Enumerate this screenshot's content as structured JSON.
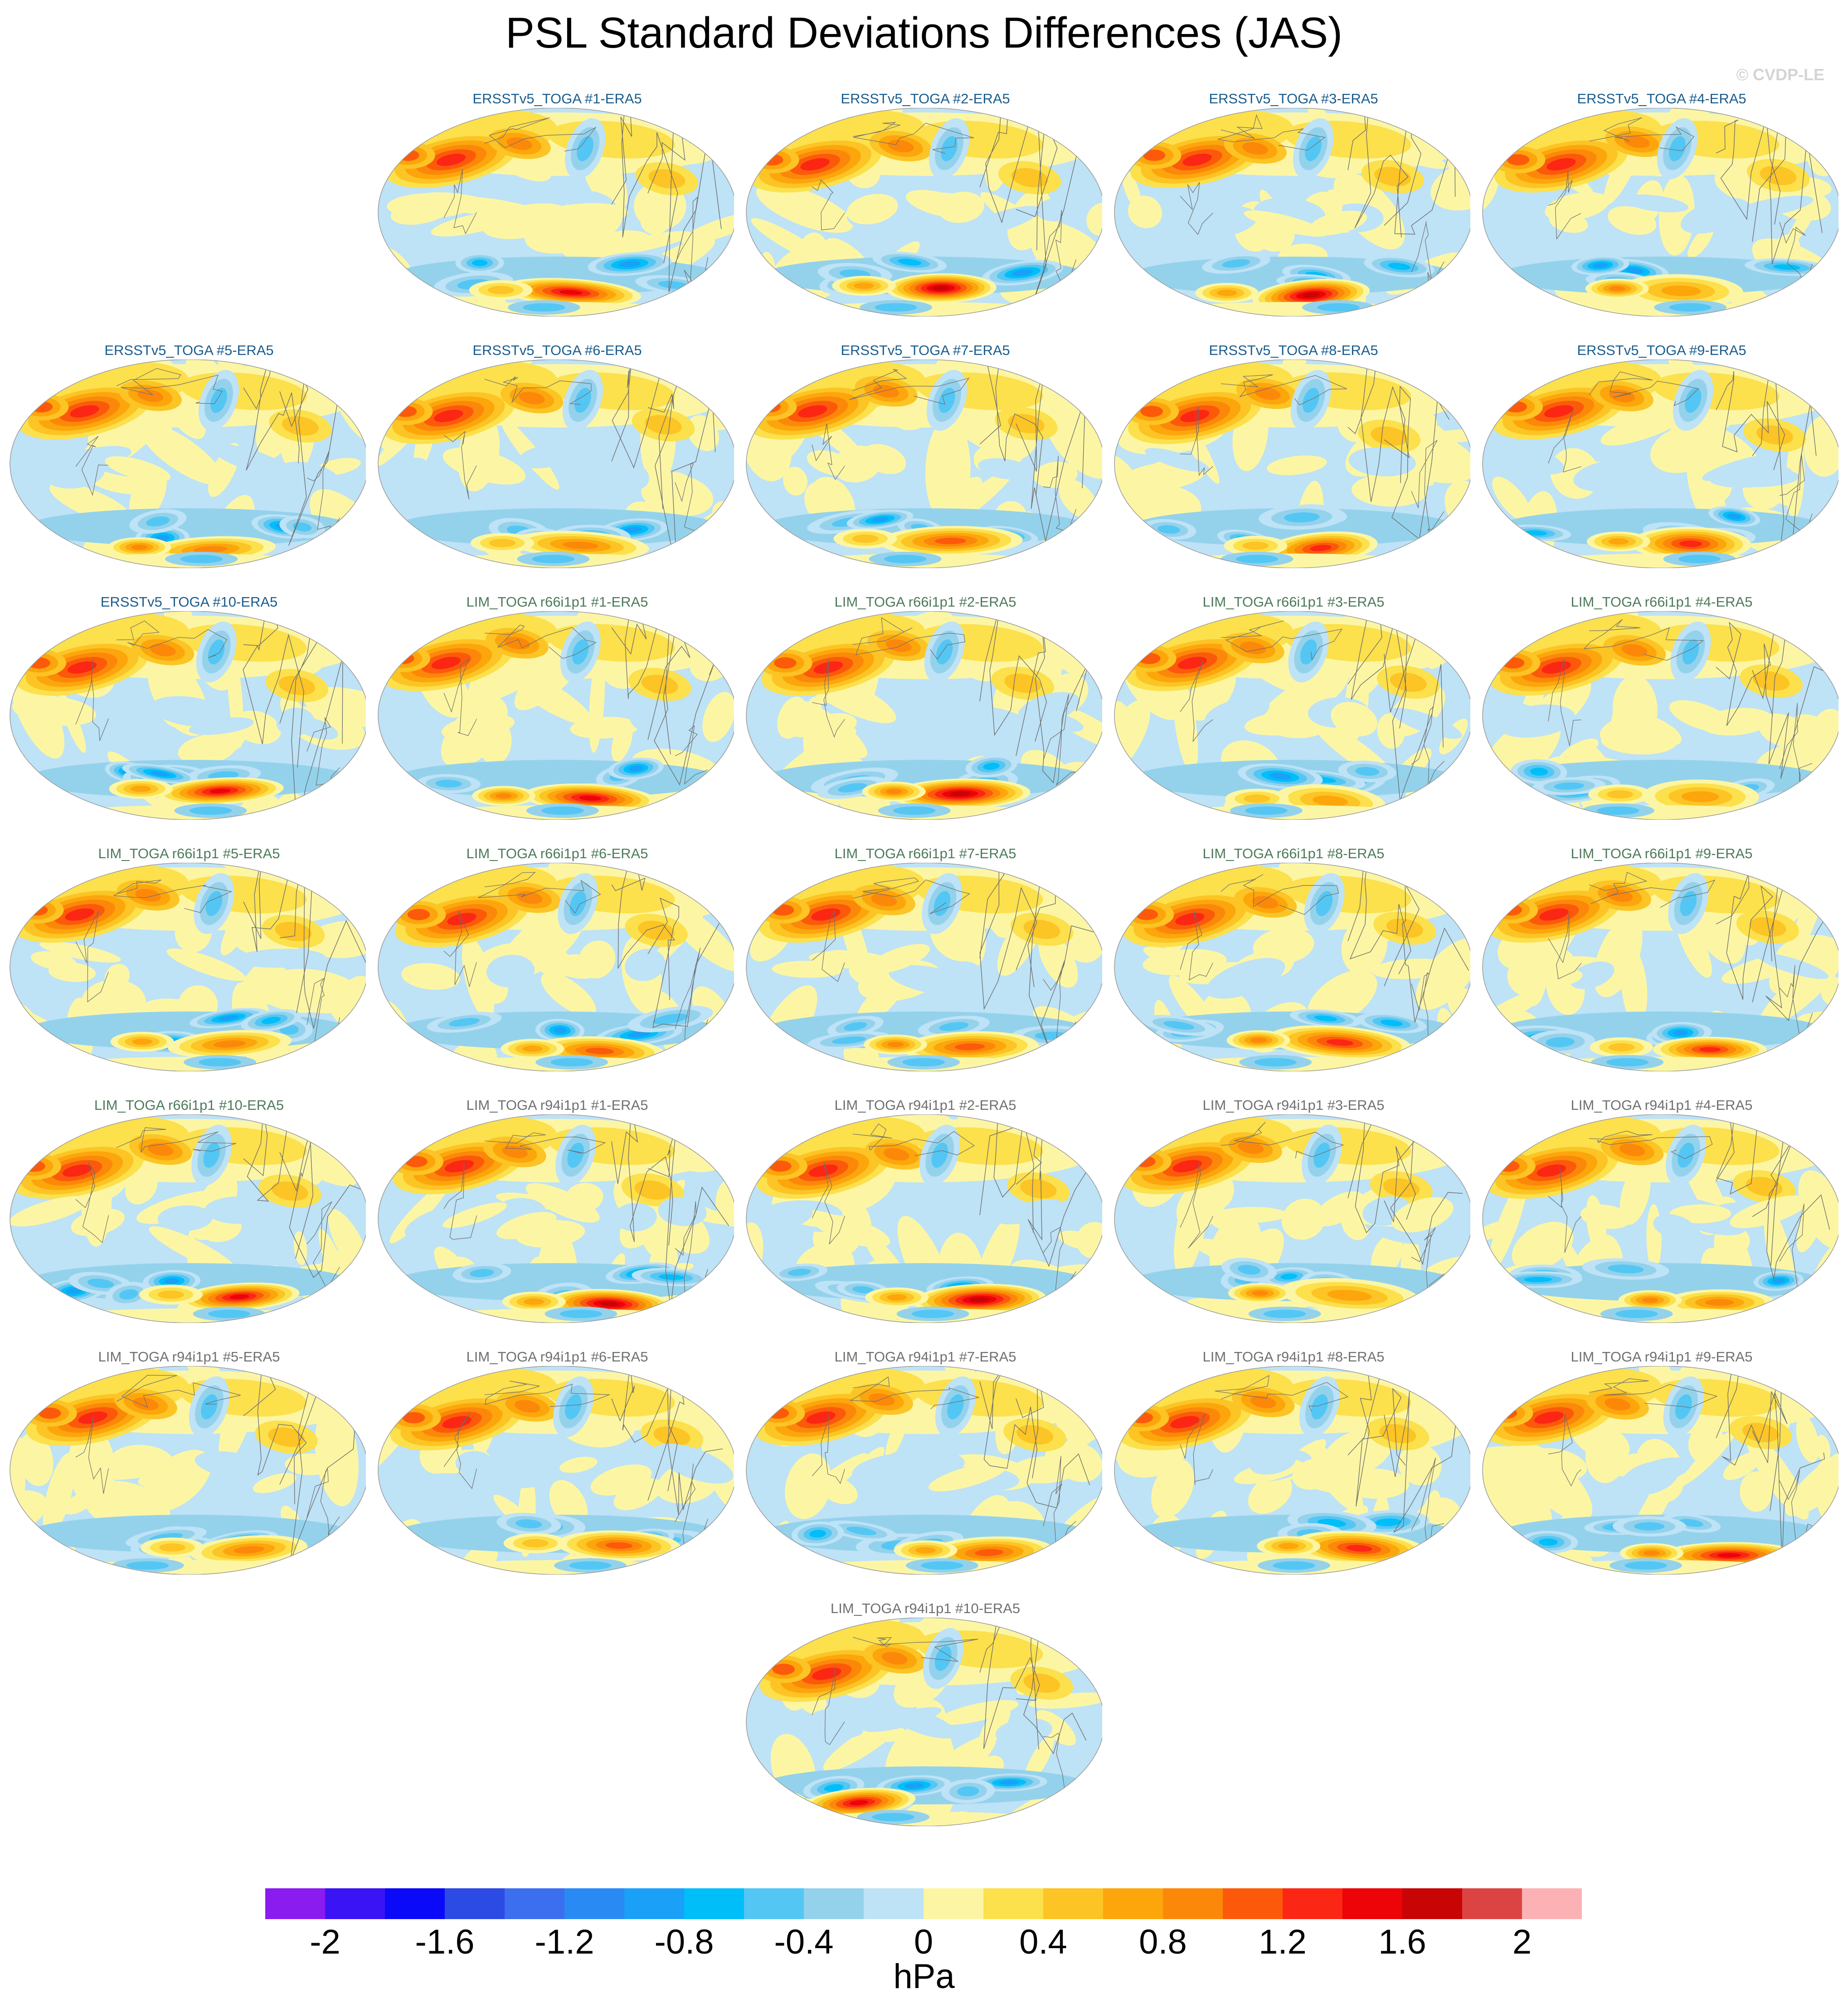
{
  "title": "PSL Standard Deviations Differences (JAS)",
  "copyright": "© CVDP-LE",
  "units": "hPa",
  "colorbar": {
    "colors": [
      "#8a1cf0",
      "#3a14f4",
      "#0a0af8",
      "#2c4ae4",
      "#3c6ef0",
      "#2a8af4",
      "#1aa0f6",
      "#00bef8",
      "#54c6f4",
      "#94d2ec",
      "#bee2f6",
      "#fcf6a4",
      "#fce04c",
      "#fcc424",
      "#fca60c",
      "#fc880a",
      "#fc5a0a",
      "#fc2614",
      "#ec0408",
      "#c80404",
      "#dc4444",
      "#fcb2b4"
    ],
    "tick_labels": [
      "-2",
      "-1.6",
      "-1.2",
      "-0.8",
      "-0.4",
      "0",
      "0.4",
      "0.8",
      "1.2",
      "1.6",
      "2"
    ]
  },
  "panels": [
    {
      "title": "ERSSTv5_TOGA #1-ERA5",
      "group": "obs"
    },
    {
      "title": "ERSSTv5_TOGA #2-ERA5",
      "group": "obs"
    },
    {
      "title": "ERSSTv5_TOGA #3-ERA5",
      "group": "obs"
    },
    {
      "title": "ERSSTv5_TOGA #4-ERA5",
      "group": "obs"
    },
    {
      "title": "ERSSTv5_TOGA #5-ERA5",
      "group": "obs"
    },
    {
      "title": "ERSSTv5_TOGA #6-ERA5",
      "group": "obs"
    },
    {
      "title": "ERSSTv5_TOGA #7-ERA5",
      "group": "obs"
    },
    {
      "title": "ERSSTv5_TOGA #8-ERA5",
      "group": "obs"
    },
    {
      "title": "ERSSTv5_TOGA #9-ERA5",
      "group": "obs"
    },
    {
      "title": "ERSSTv5_TOGA #10-ERA5",
      "group": "obs"
    },
    {
      "title": "LIM_TOGA r66i1p1 #1-ERA5",
      "group": "r66"
    },
    {
      "title": "LIM_TOGA r66i1p1 #2-ERA5",
      "group": "r66"
    },
    {
      "title": "LIM_TOGA r66i1p1 #3-ERA5",
      "group": "r66"
    },
    {
      "title": "LIM_TOGA r66i1p1 #4-ERA5",
      "group": "r66"
    },
    {
      "title": "LIM_TOGA r66i1p1 #5-ERA5",
      "group": "r66"
    },
    {
      "title": "LIM_TOGA r66i1p1 #6-ERA5",
      "group": "r66"
    },
    {
      "title": "LIM_TOGA r66i1p1 #7-ERA5",
      "group": "r66"
    },
    {
      "title": "LIM_TOGA r66i1p1 #8-ERA5",
      "group": "r66"
    },
    {
      "title": "LIM_TOGA r66i1p1 #9-ERA5",
      "group": "r66"
    },
    {
      "title": "LIM_TOGA r66i1p1 #10-ERA5",
      "group": "r66"
    },
    {
      "title": "LIM_TOGA r94i1p1 #1-ERA5",
      "group": "r94"
    },
    {
      "title": "LIM_TOGA r94i1p1 #2-ERA5",
      "group": "r94"
    },
    {
      "title": "LIM_TOGA r94i1p1 #3-ERA5",
      "group": "r94"
    },
    {
      "title": "LIM_TOGA r94i1p1 #4-ERA5",
      "group": "r94"
    },
    {
      "title": "LIM_TOGA r94i1p1 #5-ERA5",
      "group": "r94"
    },
    {
      "title": "LIM_TOGA r94i1p1 #6-ERA5",
      "group": "r94"
    },
    {
      "title": "LIM_TOGA r94i1p1 #7-ERA5",
      "group": "r94"
    },
    {
      "title": "LIM_TOGA r94i1p1 #8-ERA5",
      "group": "r94"
    },
    {
      "title": "LIM_TOGA r94i1p1 #9-ERA5",
      "group": "r94"
    },
    {
      "title": "LIM_TOGA r94i1p1 #10-ERA5",
      "group": "r94"
    }
  ],
  "group_title_colors": {
    "obs": "#1a5c8c",
    "r66": "#4d7a5a",
    "r94": "#707070"
  }
}
